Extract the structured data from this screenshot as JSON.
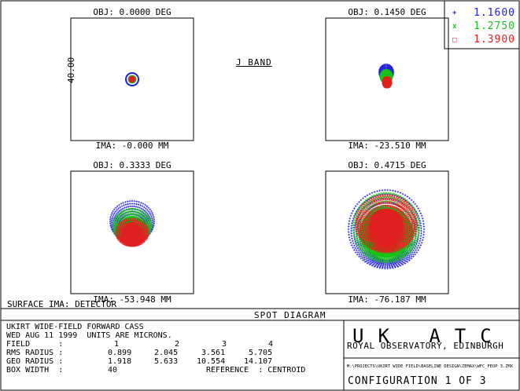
{
  "diagram": {
    "band_label": "J BAND",
    "y_axis_label": "40.00",
    "surface_label": "SURFACE IMA: DETECTOR",
    "diagram_title": "SPOT DIAGRAM",
    "legend": [
      {
        "marker": "+",
        "wavelength": "1.1600",
        "color": "#1f1fdd"
      },
      {
        "marker": "x",
        "wavelength": "1.2750",
        "color": "#18c318"
      },
      {
        "marker": "□",
        "wavelength": "1.3900",
        "color": "#e02020"
      }
    ],
    "panels": [
      {
        "obj": "OBJ: 0.0000 DEG",
        "ima": "IMA: -0.000 MM"
      },
      {
        "obj": "OBJ: 0.1450 DEG",
        "ima": "IMA: -23.510 MM"
      },
      {
        "obj": "OBJ: 0.3333 DEG",
        "ima": "IMA: -53.948 MM"
      },
      {
        "obj": "OBJ: 0.4715 DEG",
        "ima": "IMA: -76.187 MM"
      }
    ]
  },
  "info": {
    "line1": "UKIRT WIDE-FIELD FORWARD CASS",
    "line2": "WED AUG 11 1999  UNITS ARE MICRONS.",
    "field_label": "FIELD      :",
    "field_values": [
      "1",
      "2",
      "3",
      "4"
    ],
    "rms_label": "RMS RADIUS :",
    "rms_values": [
      "0.899",
      "2.045",
      "3.561",
      "5.705"
    ],
    "geo_label": "GEO RADIUS :",
    "geo_values": [
      "1.918",
      "5.633",
      "10.554",
      "14.107"
    ],
    "box_label": "BOX WIDTH  :",
    "box_value": "40",
    "reference": "REFERENCE  : CENTROID"
  },
  "org": {
    "logo_text": "UK ATC",
    "name": "ROYAL OBSERVATORY, EDINBURGH",
    "file_path": "M:\\PROJECTS\\UKIRT WIDE FIELD\\BASELINE DESIGN\\ZEMAX\\WFC_FEOP 3.ZMX",
    "configuration": "CONFIGURATION  1 OF  3"
  }
}
